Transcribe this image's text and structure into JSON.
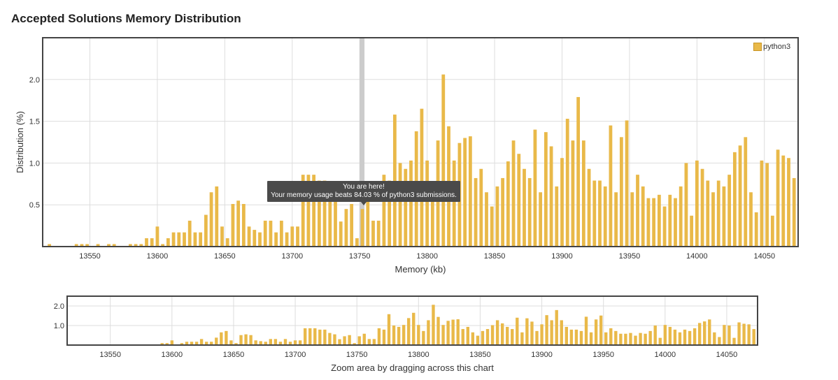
{
  "title": "Accepted Solutions Memory Distribution",
  "tooltip": {
    "line1": "You are here!",
    "line2": "Your memory usage beats 84.03 % of python3 submissions."
  },
  "legend": {
    "label": "python3"
  },
  "zoom_hint": "Zoom area by dragging across this chart",
  "colors": {
    "bar": "#e9b949",
    "bar_edge": "#d9a634",
    "marker": "#cccccc",
    "grid": "#dddddd",
    "frame": "#444444"
  },
  "chart_data": [
    {
      "type": "bar",
      "title": "Accepted Solutions Memory Distribution",
      "xlabel": "Memory (kb)",
      "ylabel": "Distribution (%)",
      "xlim": [
        13515,
        14075
      ],
      "ylim": [
        0,
        2.5
      ],
      "xticks": [
        13550,
        13600,
        13650,
        13700,
        13750,
        13800,
        13850,
        13900,
        13950,
        14000,
        14050
      ],
      "yticks": [
        0.5,
        1.0,
        1.5,
        2.0
      ],
      "ytick_labels": [
        "0.5",
        "1.0",
        "1.5",
        "2.0"
      ],
      "legend_position": "top-right",
      "marker_x": 13752,
      "series": [
        {
          "name": "python3",
          "x": [
            13520,
            13528,
            13532,
            13540,
            13544,
            13548,
            13556,
            13564,
            13568,
            13580,
            13584,
            13588,
            13592,
            13596,
            13600,
            13604,
            13608,
            13612,
            13616,
            13620,
            13624,
            13628,
            13632,
            13636,
            13640,
            13644,
            13648,
            13652,
            13656,
            13660,
            13664,
            13668,
            13672,
            13676,
            13680,
            13684,
            13688,
            13692,
            13696,
            13700,
            13704,
            13708,
            13712,
            13716,
            13720,
            13724,
            13728,
            13732,
            13736,
            13740,
            13744,
            13748,
            13752,
            13756,
            13760,
            13764,
            13768,
            13772,
            13776,
            13780,
            13784,
            13788,
            13792,
            13796,
            13800,
            13804,
            13808,
            13812,
            13816,
            13820,
            13824,
            13828,
            13832,
            13836,
            13840,
            13844,
            13848,
            13852,
            13856,
            13860,
            13864,
            13868,
            13872,
            13876,
            13880,
            13884,
            13888,
            13892,
            13896,
            13900,
            13904,
            13908,
            13912,
            13916,
            13920,
            13924,
            13928,
            13932,
            13936,
            13940,
            13944,
            13948,
            13952,
            13956,
            13960,
            13964,
            13968,
            13972,
            13976,
            13980,
            13984,
            13988,
            13992,
            13996,
            14000,
            14004,
            14008,
            14012,
            14016,
            14020,
            14024,
            14028,
            14032,
            14036,
            14040,
            14044,
            14048,
            14052,
            14056,
            14060,
            14064,
            14068,
            14072
          ],
          "values": [
            0.03,
            0,
            0,
            0.03,
            0.03,
            0.03,
            0.03,
            0.03,
            0.03,
            0.03,
            0.03,
            0.03,
            0.1,
            0.1,
            0.24,
            0.03,
            0.1,
            0.17,
            0.17,
            0.17,
            0.31,
            0.17,
            0.17,
            0.38,
            0.65,
            0.72,
            0.24,
            0.1,
            0.51,
            0.55,
            0.51,
            0.24,
            0.2,
            0.17,
            0.31,
            0.31,
            0.17,
            0.31,
            0.17,
            0.24,
            0.24,
            0.86,
            0.86,
            0.86,
            0.79,
            0.79,
            0.62,
            0.55,
            0.3,
            0.45,
            0.51,
            0.1,
            0.45,
            0.58,
            0.31,
            0.31,
            0.86,
            0.79,
            1.58,
            1.0,
            0.93,
            1.03,
            1.38,
            1.65,
            1.03,
            0.72,
            1.27,
            2.06,
            1.44,
            1.03,
            1.24,
            1.3,
            1.32,
            0.82,
            0.93,
            0.65,
            0.48,
            0.72,
            0.82,
            1.02,
            1.27,
            1.11,
            0.93,
            0.82,
            1.4,
            0.65,
            1.37,
            1.2,
            0.72,
            1.06,
            1.53,
            1.27,
            1.79,
            1.27,
            0.93,
            0.79,
            0.79,
            0.72,
            1.45,
            0.65,
            1.31,
            1.51,
            0.65,
            0.86,
            0.72,
            0.58,
            0.58,
            0.62,
            0.48,
            0.62,
            0.58,
            0.72,
            1.0,
            0.37,
            1.03,
            0.93,
            0.79,
            0.65,
            0.79,
            0.72,
            0.86,
            1.13,
            1.21,
            1.31,
            0.65,
            0.41,
            1.03,
            1.0,
            0.37,
            1.16,
            1.09,
            1.06,
            0.82
          ]
        }
      ]
    },
    {
      "type": "bar",
      "title": "",
      "xlabel": "Zoom area by dragging across this chart",
      "ylabel": "",
      "xlim": [
        13515,
        14075
      ],
      "ylim": [
        0,
        2.5
      ],
      "xticks": [
        13550,
        13600,
        13650,
        13700,
        13750,
        13800,
        13850,
        13900,
        13950,
        14000,
        14050
      ],
      "yticks": [
        1.0,
        2.0
      ],
      "ytick_labels": [
        "1.0",
        "2.0"
      ]
    }
  ]
}
